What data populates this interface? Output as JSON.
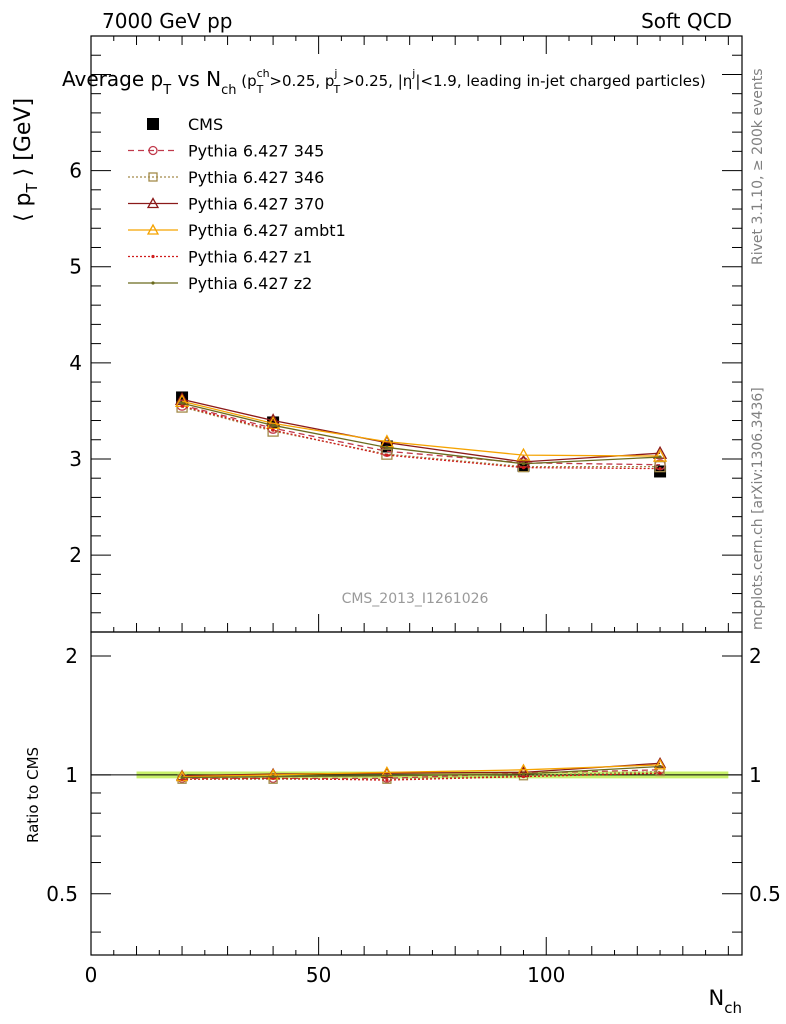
{
  "header": {
    "left": "7000 GeV pp",
    "right": "Soft QCD"
  },
  "title": {
    "main_a": "Average p",
    "main_sub_a": "T",
    "main_b": " vs N",
    "main_sub_b": "ch",
    "cond_open": " (p",
    "cond_sup1": "ch",
    "cond_sub1": "T",
    "cond_mid1": ">0.25, p",
    "cond_sup2": "j",
    "cond_sub2": "T",
    "cond_mid2": ">0.25, |η",
    "cond_sup3": "j",
    "cond_end": "|<1.9, leading in-jet charged particles)"
  },
  "side_labels": {
    "rivet": "Rivet 3.1.10, ≥ 200k events",
    "mcplots": "mcplots.cern.ch [arXiv:1306.3436]"
  },
  "watermark": "CMS_2013_I1261026",
  "colors": {
    "CMS": "#000000",
    "p345": "#c0394b",
    "p346": "#a38b4a",
    "p370": "#8b1a1a",
    "ambt1": "#f5a300",
    "z1": "#d01c1c",
    "z2": "#6b6b1e",
    "band": "#c8f06a"
  },
  "chart_data": [
    {
      "type": "line",
      "panel": "main",
      "ylabel": "⟨ p_T ⟩ [GeV]",
      "xlim": [
        0,
        143
      ],
      "ylim": [
        1.2,
        7.4
      ],
      "yticks": [
        2,
        3,
        4,
        5,
        6
      ],
      "xticks": [
        0,
        50,
        100
      ],
      "legend_placement": "top-left",
      "series": [
        {
          "name": "CMS",
          "marker": "filled-square",
          "x": [
            20,
            40,
            65,
            95,
            125
          ],
          "values": [
            3.64,
            3.38,
            3.13,
            2.93,
            2.87
          ]
        },
        {
          "name": "Pythia 6.427 345",
          "line": "dashed",
          "marker": "open-circle",
          "x": [
            20,
            40,
            65,
            95,
            125
          ],
          "values": [
            3.56,
            3.32,
            3.08,
            2.96,
            2.94
          ]
        },
        {
          "name": "Pythia 6.427 346",
          "line": "dotted",
          "marker": "open-square",
          "x": [
            20,
            40,
            65,
            95,
            125
          ],
          "values": [
            3.54,
            3.29,
            3.05,
            2.92,
            2.92
          ]
        },
        {
          "name": "Pythia 6.427 370",
          "line": "solid",
          "marker": "open-triangle",
          "x": [
            20,
            40,
            65,
            95,
            125
          ],
          "values": [
            3.62,
            3.4,
            3.17,
            2.97,
            3.06
          ]
        },
        {
          "name": "Pythia 6.427 ambt1",
          "line": "solid",
          "marker": "open-triangle",
          "x": [
            20,
            40,
            65,
            95,
            125
          ],
          "values": [
            3.6,
            3.37,
            3.18,
            3.04,
            3.03
          ]
        },
        {
          "name": "Pythia 6.427 z1",
          "line": "dotted",
          "marker": "dot",
          "x": [
            20,
            40,
            65,
            95,
            125
          ],
          "values": [
            3.55,
            3.3,
            3.04,
            2.91,
            2.9
          ]
        },
        {
          "name": "Pythia 6.427 z2",
          "line": "solid",
          "marker": "dot",
          "x": [
            20,
            40,
            65,
            95,
            125
          ],
          "values": [
            3.58,
            3.35,
            3.12,
            2.95,
            3.02
          ]
        }
      ]
    },
    {
      "type": "line",
      "panel": "ratio",
      "ylabel": "Ratio to CMS",
      "xlabel": "N_ch",
      "xlim": [
        0,
        143
      ],
      "ylim": [
        0.35,
        2.3
      ],
      "yscale": "log",
      "yticks": [
        0.5,
        1,
        2
      ],
      "xticks": [
        0,
        50,
        100
      ],
      "band": {
        "x": [
          10,
          140
        ],
        "low": 0.98,
        "high": 1.02
      },
      "series": [
        {
          "name": "Pythia 6.427 345",
          "x": [
            20,
            40,
            65,
            95,
            125
          ],
          "values": [
            0.98,
            0.98,
            0.98,
            1.01,
            1.03
          ]
        },
        {
          "name": "Pythia 6.427 346",
          "x": [
            20,
            40,
            65,
            95,
            125
          ],
          "values": [
            0.975,
            0.975,
            0.975,
            0.995,
            1.02
          ]
        },
        {
          "name": "Pythia 6.427 370",
          "x": [
            20,
            40,
            65,
            95,
            125
          ],
          "values": [
            0.995,
            1.005,
            1.01,
            1.015,
            1.07
          ]
        },
        {
          "name": "Pythia 6.427 ambt1",
          "x": [
            20,
            40,
            65,
            95,
            125
          ],
          "values": [
            0.99,
            1.0,
            1.015,
            1.03,
            1.06
          ]
        },
        {
          "name": "Pythia 6.427 z1",
          "x": [
            20,
            40,
            65,
            95,
            125
          ],
          "values": [
            0.975,
            0.98,
            0.97,
            0.99,
            1.01
          ]
        },
        {
          "name": "Pythia 6.427 z2",
          "x": [
            20,
            40,
            65,
            95,
            125
          ],
          "values": [
            0.985,
            0.99,
            0.995,
            1.005,
            1.05
          ]
        }
      ]
    }
  ]
}
